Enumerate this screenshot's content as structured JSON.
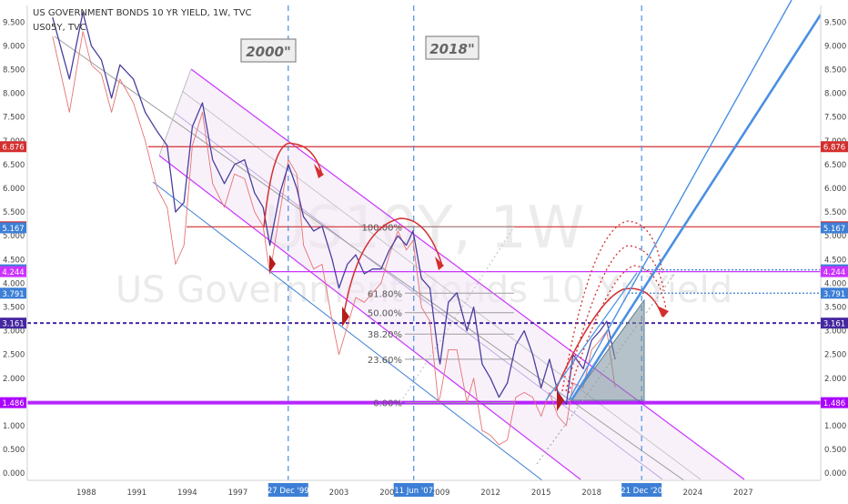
{
  "header": {
    "title": "US GOVERNMENT BONDS 10 YR YIELD, 1W, TVC",
    "overlay_symbol": "US05Y, TVC"
  },
  "watermark": {
    "symbol": "US10Y, 1W",
    "name": "US Government Bonds 10 Yr Yield"
  },
  "annotations": {
    "box_2000": "2000\"",
    "box_2018": "2018\""
  },
  "colors": {
    "main_series": "#4a3f9f",
    "overlay_series": "#e57373",
    "channel": "#cc33ff",
    "red_line": "#d32f2f",
    "blue_line": "#3d7fd6",
    "vline": "#4a8fe0",
    "purple_support": "#aa00ff",
    "dashed_resistance": "#4527a0",
    "fib": "#9e9e9e"
  },
  "chart_data": {
    "type": "line",
    "title": "US GOVERNMENT BONDS 10 YR YIELD, 1W, TVC",
    "xlabel": "",
    "ylabel": "",
    "xlim": [
      1984.5,
      2031.6
    ],
    "ylim": [
      -0.15,
      9.85
    ],
    "x_ticks": [
      1988,
      1991,
      1994,
      1997,
      2000,
      2003,
      2006,
      2009,
      2012,
      2015,
      2018,
      2024,
      2027
    ],
    "y_ticks": [
      "0.000",
      "0.500",
      "1.000",
      "1.500",
      "2.000",
      "2.500",
      "3.000",
      "3.500",
      "4.000",
      "4.500",
      "5.000",
      "5.500",
      "6.000",
      "6.500",
      "7.000",
      "7.500",
      "8.000",
      "8.500",
      "9.000",
      "9.500"
    ],
    "axes_both_sides": true,
    "grid": false,
    "vertical_date_markers": [
      {
        "label": "27 Dec '99",
        "x": 1999.99
      },
      {
        "label": "11 Jun '07",
        "x": 2007.44
      },
      {
        "label": "21 Dec '20",
        "x": 2020.97
      }
    ],
    "horizontal_levels": [
      {
        "value": 6.876,
        "label": "6.876",
        "color": "#d32f2f",
        "style": "solid"
      },
      {
        "value": 5.189,
        "label": "5.189",
        "color": "#d32f2f",
        "style": "solid"
      },
      {
        "value": 5.167,
        "label": "5.167",
        "color": "#3d7fd6",
        "style": "none"
      },
      {
        "value": 4.283,
        "label": "4.283",
        "color": "#3d7fd6",
        "style": "dotted"
      },
      {
        "value": 4.244,
        "label": "4.244",
        "color": "#cc33ff",
        "style": "solid"
      },
      {
        "value": 3.791,
        "label": "3.791",
        "color": "#3d7fd6",
        "style": "dotted"
      },
      {
        "value": 3.161,
        "label": "3.161",
        "color": "#4527a0",
        "style": "dashed"
      },
      {
        "value": 1.486,
        "label": "1.486",
        "color": "#aa00ff",
        "style": "thick"
      }
    ],
    "fibonacci": [
      {
        "label": "100.00%",
        "value": 5.189
      },
      {
        "label": "61.80%",
        "value": 3.791
      },
      {
        "label": "50.00%",
        "value": 3.38
      },
      {
        "label": "38.20%",
        "value": 2.93
      },
      {
        "label": "23.60%",
        "value": 2.4
      },
      {
        "label": "0.00%",
        "value": 1.486
      }
    ],
    "series": [
      {
        "name": "US10Y",
        "color": "#4a3f9f",
        "x": [
          1986.0,
          1987.0,
          1987.8,
          1988.3,
          1988.9,
          1989.5,
          1990.0,
          1990.8,
          1991.5,
          1992.2,
          1992.8,
          1993.3,
          1993.8,
          1994.3,
          1994.9,
          1995.5,
          1996.2,
          1996.8,
          1997.4,
          1998.0,
          1998.5,
          1998.9,
          1999.5,
          2000.0,
          2000.5,
          2000.9,
          2001.5,
          2002.0,
          2002.6,
          2003.0,
          2003.5,
          2004.0,
          2004.5,
          2005.0,
          2005.5,
          2006.0,
          2006.5,
          2007.0,
          2007.4,
          2007.9,
          2008.4,
          2008.9,
          2009.0,
          2009.5,
          2010.0,
          2010.6,
          2011.0,
          2011.5,
          2012.0,
          2012.5,
          2013.0,
          2013.5,
          2014.0,
          2014.5,
          2015.0,
          2015.5,
          2016.0,
          2016.5,
          2016.9,
          2017.5,
          2018.0,
          2018.5,
          2018.9,
          2019.4
        ],
        "values": [
          9.6,
          8.3,
          9.7,
          9.0,
          8.7,
          7.9,
          8.6,
          8.3,
          7.6,
          7.2,
          6.9,
          5.5,
          5.7,
          7.3,
          7.8,
          6.6,
          6.1,
          6.5,
          6.6,
          5.9,
          5.6,
          4.8,
          5.9,
          6.5,
          6.0,
          5.4,
          5.1,
          5.2,
          4.5,
          3.9,
          4.4,
          4.6,
          4.2,
          4.3,
          4.3,
          4.7,
          5.0,
          4.8,
          5.1,
          4.1,
          3.9,
          2.5,
          2.3,
          3.6,
          3.8,
          3.0,
          3.5,
          2.3,
          2.0,
          1.6,
          1.9,
          2.7,
          3.0,
          2.5,
          1.8,
          2.4,
          1.7,
          1.45,
          2.5,
          2.2,
          2.8,
          3.0,
          3.2,
          2.4
        ]
      },
      {
        "name": "US05Y",
        "color": "#e57373",
        "x": [
          1986.0,
          1987.0,
          1987.8,
          1988.3,
          1988.9,
          1989.5,
          1990.0,
          1990.8,
          1991.5,
          1992.2,
          1992.8,
          1993.3,
          1993.8,
          1994.3,
          1994.9,
          1995.5,
          1996.2,
          1996.8,
          1997.4,
          1998.0,
          1998.5,
          1998.9,
          1999.5,
          2000.0,
          2000.5,
          2000.9,
          2001.5,
          2002.0,
          2002.6,
          2003.0,
          2003.5,
          2004.0,
          2004.5,
          2005.0,
          2005.5,
          2006.0,
          2006.5,
          2007.0,
          2007.4,
          2007.9,
          2008.4,
          2008.9,
          2009.0,
          2009.5,
          2010.0,
          2010.6,
          2011.0,
          2011.5,
          2012.0,
          2012.5,
          2013.0,
          2013.5,
          2014.0,
          2014.5,
          2015.0,
          2015.5,
          2016.0,
          2016.5,
          2016.9,
          2017.5,
          2018.0,
          2018.5,
          2018.9,
          2019.4
        ],
        "values": [
          9.2,
          7.6,
          9.3,
          8.6,
          8.4,
          7.6,
          8.3,
          7.8,
          7.0,
          6.0,
          5.6,
          4.4,
          4.8,
          6.9,
          7.6,
          6.1,
          5.6,
          6.3,
          6.2,
          5.5,
          5.2,
          4.2,
          5.5,
          6.6,
          6.3,
          4.8,
          4.3,
          4.4,
          3.2,
          2.5,
          3.1,
          3.7,
          3.6,
          3.8,
          4.0,
          4.6,
          5.1,
          4.7,
          4.9,
          3.5,
          3.2,
          1.5,
          1.6,
          2.6,
          2.6,
          1.5,
          2.0,
          0.9,
          0.8,
          0.6,
          0.7,
          1.6,
          1.7,
          1.6,
          1.2,
          1.7,
          1.2,
          1.0,
          1.9,
          1.8,
          2.6,
          2.8,
          3.0,
          1.8
        ]
      }
    ]
  }
}
